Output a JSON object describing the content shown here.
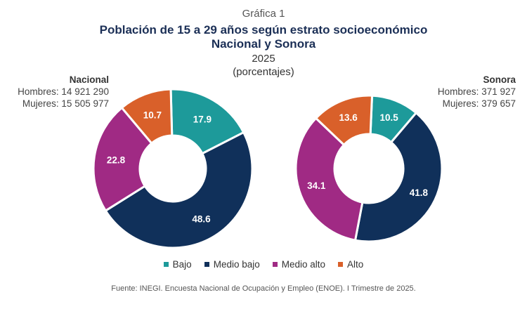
{
  "header": {
    "label": "Gráfica 1",
    "title": "Población de 15 a 29 años según estrato socioeconómico",
    "subtitle": "Nacional y Sonora",
    "year": "2025",
    "units": "(porcentajes)"
  },
  "nacional": {
    "title": "Nacional",
    "hombres": "Hombres: 14 921 290",
    "mujeres": "Mujeres: 15 505 977"
  },
  "sonora": {
    "title": "Sonora",
    "hombres": "Hombres: 371 927",
    "mujeres": "Mujeres: 379 657"
  },
  "legend": {
    "bajo": "Bajo",
    "medio_bajo": "Medio bajo",
    "medio_alto": "Medio alto",
    "alto": "Alto"
  },
  "colors": {
    "bajo": "#1d9a9a",
    "medio_bajo": "#10305a",
    "medio_alto": "#a02a84",
    "alto": "#d9602a"
  },
  "source": "Fuente: INEGI. Encuesta Nacional de Ocupación y Empleo (ENOE). I Trimestre de 2025.",
  "chart_data": [
    {
      "type": "pie",
      "variant": "donut",
      "name": "Nacional",
      "categories": [
        "Bajo",
        "Medio bajo",
        "Medio alto",
        "Alto"
      ],
      "values": [
        17.9,
        48.6,
        22.8,
        10.7
      ],
      "labels": [
        "17.9",
        "48.6",
        "22.8",
        "10.7"
      ]
    },
    {
      "type": "pie",
      "variant": "donut",
      "name": "Sonora",
      "categories": [
        "Bajo",
        "Medio bajo",
        "Medio alto",
        "Alto"
      ],
      "values": [
        10.5,
        41.8,
        34.1,
        13.6
      ],
      "labels": [
        "10.5",
        "41.8",
        "34.1",
        "13.6"
      ]
    }
  ]
}
